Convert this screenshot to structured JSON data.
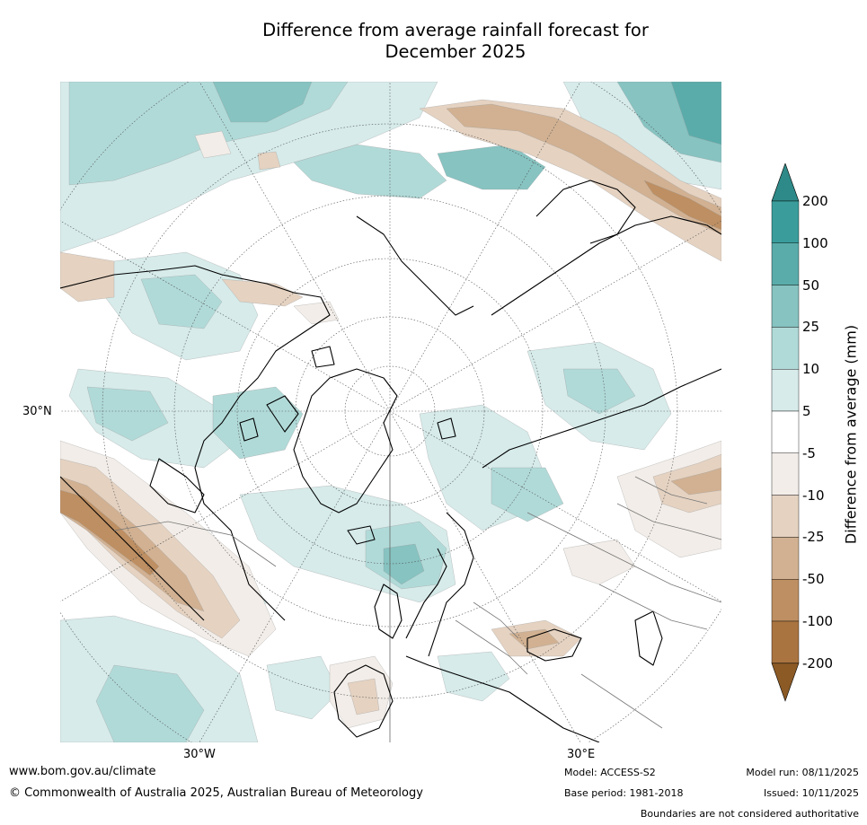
{
  "title_line1": "Difference from average rainfall forecast for",
  "title_line2": "December 2025",
  "axes": {
    "lat_label": "30°N",
    "lon_left": "30°W",
    "lon_right": "30°E"
  },
  "colorbar": {
    "label": "Difference from average (mm)",
    "ticks": [
      "200",
      "100",
      "50",
      "25",
      "10",
      "5",
      "-5",
      "-10",
      "-25",
      "-50",
      "-100",
      "-200"
    ],
    "colors": [
      "#2e8a88",
      "#3a9d9c",
      "#5aacaa",
      "#86c3c1",
      "#b0dad8",
      "#d6ebea",
      "#ffffff",
      "#f2ede8",
      "#e5d2c1",
      "#d1b192",
      "#be8f62",
      "#aa7440",
      "#8c5a25"
    ]
  },
  "footer": {
    "website": "www.bom.gov.au/climate",
    "copyright": "© Commonwealth of Australia 2025, Australian Bureau of Meteorology",
    "model": "Model: ACCESS-S2",
    "base_period": "Base period: 1981-2018",
    "model_run": "Model run: 08/11/2025",
    "issued": "Issued: 10/11/2025",
    "disclaimer": "Boundaries are not considered authoritative"
  },
  "map_colors": {
    "t1": "#d6ebea",
    "t2": "#b0dad8",
    "t3": "#86c3c1",
    "t4": "#5aacaa",
    "b1": "#f2ede8",
    "b2": "#e5d2c1",
    "b3": "#d1b192",
    "b4": "#be8f62"
  }
}
